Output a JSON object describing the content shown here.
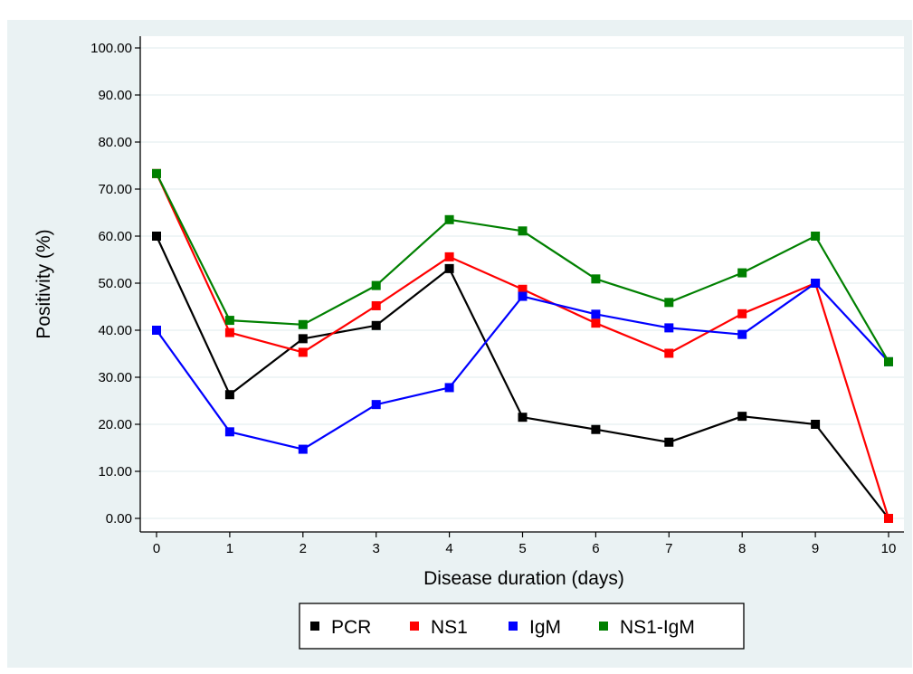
{
  "header_caption": "",
  "chart_data": {
    "type": "line",
    "title": "",
    "xlabel": "Disease duration (days)",
    "ylabel": "Positivity (%)",
    "x": [
      0,
      1,
      2,
      3,
      4,
      5,
      6,
      7,
      8,
      9,
      10
    ],
    "x_tick_labels": [
      "0",
      "1",
      "2",
      "3",
      "4",
      "5",
      "6",
      "7",
      "8",
      "9",
      "10"
    ],
    "y_tick_values": [
      0,
      10,
      20,
      30,
      40,
      50,
      60,
      70,
      80,
      90,
      100
    ],
    "y_tick_labels": [
      "0.00",
      "10.00",
      "20.00",
      "30.00",
      "40.00",
      "50.00",
      "60.00",
      "70.00",
      "80.00",
      "90.00",
      "100.00"
    ],
    "xlim": [
      0,
      10
    ],
    "ylim": [
      0,
      100
    ],
    "grid": "horizontal",
    "legend_position": "bottom",
    "series": [
      {
        "name": "PCR",
        "color": "#000000",
        "values": [
          60.0,
          26.3,
          38.2,
          41.0,
          53.1,
          21.5,
          18.9,
          16.2,
          21.7,
          20.0,
          0.0
        ]
      },
      {
        "name": "NS1",
        "color": "#ff0000",
        "values": [
          73.3,
          39.5,
          35.3,
          45.2,
          55.6,
          48.7,
          41.5,
          35.1,
          43.5,
          50.0,
          0.0
        ]
      },
      {
        "name": "IgM",
        "color": "#0000ff",
        "values": [
          40.0,
          18.4,
          14.7,
          24.2,
          27.8,
          47.2,
          43.4,
          40.5,
          39.1,
          50.0,
          33.3
        ]
      },
      {
        "name": "NS1-IgM",
        "color": "#008000",
        "values": [
          73.3,
          42.1,
          41.2,
          49.5,
          63.5,
          61.1,
          50.9,
          45.9,
          52.2,
          60.0,
          33.3
        ]
      }
    ]
  },
  "colors": {
    "outer_background": "#eaf2f3",
    "plot_background": "#ffffff",
    "gridline": "#eaf2f3",
    "axis": "#000000"
  }
}
